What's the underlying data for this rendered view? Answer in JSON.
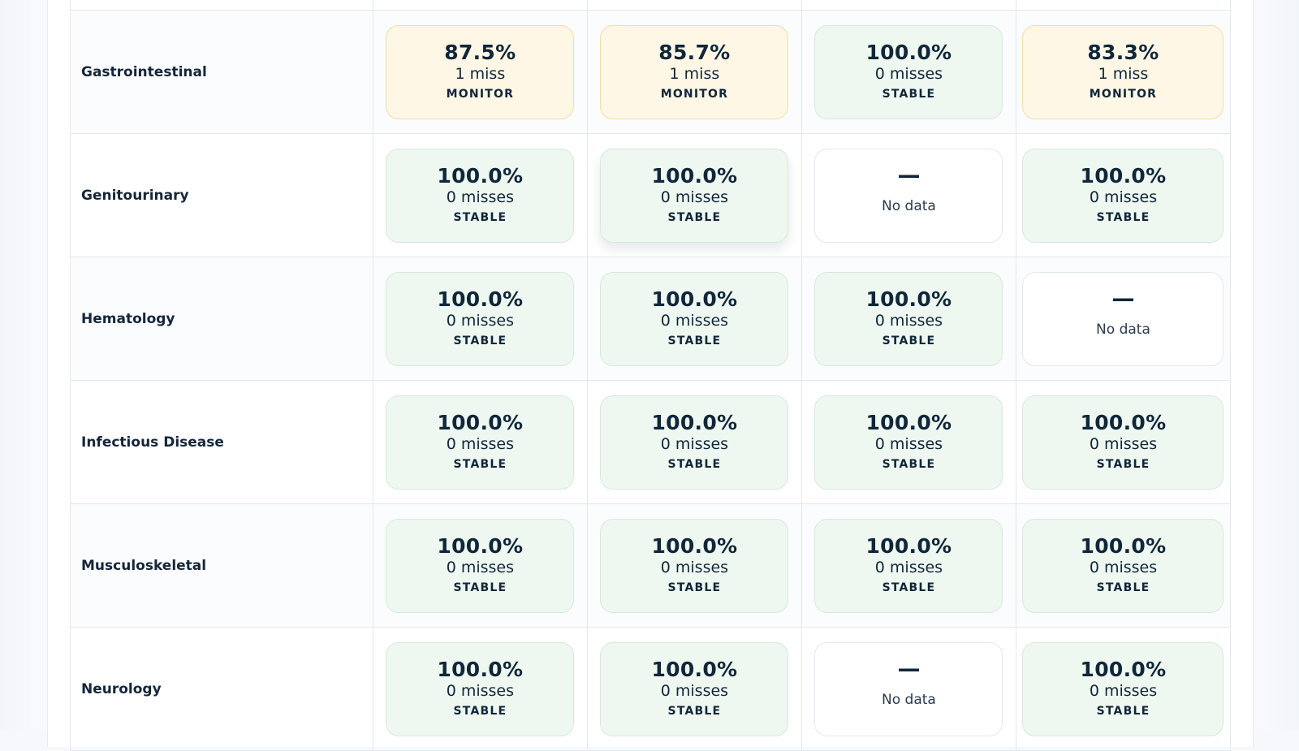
{
  "colors": {
    "stable_bg": "#eef8f0",
    "monitor_bg": "#fff7e6",
    "nodata_bg": "#ffffff",
    "text": "#10263a"
  },
  "rows": [
    {
      "label": "",
      "cells": [
        {
          "type": "blank"
        },
        {
          "type": "blank"
        },
        {
          "type": "blank"
        },
        {
          "type": "blank"
        }
      ]
    },
    {
      "label": "Gastrointestinal",
      "cells": [
        {
          "type": "metric",
          "pct": "87.5%",
          "misses": "1 miss",
          "status": "MONITOR",
          "variant": "monitor"
        },
        {
          "type": "metric",
          "pct": "85.7%",
          "misses": "1 miss",
          "status": "MONITOR",
          "variant": "monitor"
        },
        {
          "type": "metric",
          "pct": "100.0%",
          "misses": "0 misses",
          "status": "STABLE",
          "variant": "stable"
        },
        {
          "type": "metric",
          "pct": "83.3%",
          "misses": "1 miss",
          "status": "MONITOR",
          "variant": "monitor"
        }
      ]
    },
    {
      "label": "Genitourinary",
      "cells": [
        {
          "type": "metric",
          "pct": "100.0%",
          "misses": "0 misses",
          "status": "STABLE",
          "variant": "stable"
        },
        {
          "type": "metric",
          "pct": "100.0%",
          "misses": "0 misses",
          "status": "STABLE",
          "variant": "stable",
          "raised": true
        },
        {
          "type": "nodata",
          "dash": "—",
          "text": "No data"
        },
        {
          "type": "metric",
          "pct": "100.0%",
          "misses": "0 misses",
          "status": "STABLE",
          "variant": "stable"
        }
      ]
    },
    {
      "label": "Hematology",
      "cells": [
        {
          "type": "metric",
          "pct": "100.0%",
          "misses": "0 misses",
          "status": "STABLE",
          "variant": "stable"
        },
        {
          "type": "metric",
          "pct": "100.0%",
          "misses": "0 misses",
          "status": "STABLE",
          "variant": "stable"
        },
        {
          "type": "metric",
          "pct": "100.0%",
          "misses": "0 misses",
          "status": "STABLE",
          "variant": "stable"
        },
        {
          "type": "nodata",
          "dash": "—",
          "text": "No data"
        }
      ]
    },
    {
      "label": "Infectious Disease",
      "cells": [
        {
          "type": "metric",
          "pct": "100.0%",
          "misses": "0 misses",
          "status": "STABLE",
          "variant": "stable"
        },
        {
          "type": "metric",
          "pct": "100.0%",
          "misses": "0 misses",
          "status": "STABLE",
          "variant": "stable"
        },
        {
          "type": "metric",
          "pct": "100.0%",
          "misses": "0 misses",
          "status": "STABLE",
          "variant": "stable"
        },
        {
          "type": "metric",
          "pct": "100.0%",
          "misses": "0 misses",
          "status": "STABLE",
          "variant": "stable"
        }
      ]
    },
    {
      "label": "Musculoskeletal",
      "cells": [
        {
          "type": "metric",
          "pct": "100.0%",
          "misses": "0 misses",
          "status": "STABLE",
          "variant": "stable"
        },
        {
          "type": "metric",
          "pct": "100.0%",
          "misses": "0 misses",
          "status": "STABLE",
          "variant": "stable"
        },
        {
          "type": "metric",
          "pct": "100.0%",
          "misses": "0 misses",
          "status": "STABLE",
          "variant": "stable"
        },
        {
          "type": "metric",
          "pct": "100.0%",
          "misses": "0 misses",
          "status": "STABLE",
          "variant": "stable"
        }
      ]
    },
    {
      "label": "Neurology",
      "cells": [
        {
          "type": "metric",
          "pct": "100.0%",
          "misses": "0 misses",
          "status": "STABLE",
          "variant": "stable"
        },
        {
          "type": "metric",
          "pct": "100.0%",
          "misses": "0 misses",
          "status": "STABLE",
          "variant": "stable"
        },
        {
          "type": "nodata",
          "dash": "—",
          "text": "No data"
        },
        {
          "type": "metric",
          "pct": "100.0%",
          "misses": "0 misses",
          "status": "STABLE",
          "variant": "stable"
        }
      ]
    }
  ]
}
